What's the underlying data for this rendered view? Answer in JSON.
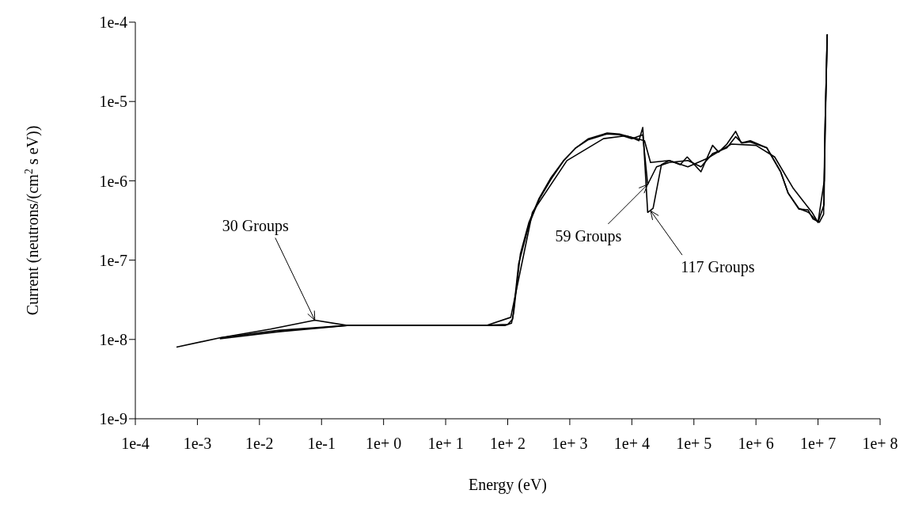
{
  "chart_data": {
    "type": "line",
    "xlabel": "Energy (eV)",
    "ylabel": "Current (neutrons/(cm$^{2}$ s eV))",
    "log": "xy",
    "xlim": [
      0.0001,
      100000000
    ],
    "xticks": [
      {
        "value": 0.0001,
        "label": "1e-4"
      },
      {
        "value": 0.001,
        "label": "1e-3"
      },
      {
        "value": 0.01,
        "label": "1e-2"
      },
      {
        "value": 0.1,
        "label": "1e-1"
      },
      {
        "value": 1,
        "label": "1e+ 0"
      },
      {
        "value": 10,
        "label": "1e+ 1"
      },
      {
        "value": 100,
        "label": "1e+ 2"
      },
      {
        "value": 1000,
        "label": "1e+ 3"
      },
      {
        "value": 10000,
        "label": "1e+ 4"
      },
      {
        "value": 100000,
        "label": "1e+ 5"
      },
      {
        "value": 1000000,
        "label": "1e+ 6"
      },
      {
        "value": 10000000,
        "label": "1e+ 7"
      },
      {
        "value": 100000000,
        "label": "1e+ 8"
      }
    ],
    "ylim": [
      1e-09,
      0.0001
    ],
    "yticks": [
      {
        "value": 1e-09,
        "label": "1e-9"
      },
      {
        "value": 1e-08,
        "label": "1e-8"
      },
      {
        "value": 1e-07,
        "label": "1e-7"
      },
      {
        "value": 1e-06,
        "label": "1e-6"
      },
      {
        "value": 1e-05,
        "label": "1e-5"
      },
      {
        "value": 0.0001,
        "label": "1e-4"
      }
    ],
    "series": [
      {
        "color": "#000000",
        "x": [
          0.0023,
          0.015,
          0.078,
          0.26,
          45,
          112,
          250,
          900,
          3500,
          8000,
          16000,
          20000,
          40000,
          80000,
          160000,
          400000,
          1000000,
          2000000,
          4000000,
          8000000,
          10000000,
          12600000,
          14000000
        ],
        "values": [
          1.05e-08,
          1.35e-08,
          1.75e-08,
          1.5e-08,
          1.5e-08,
          1.9e-08,
          4e-07,
          1.8e-06,
          3.4e-06,
          3.7e-06,
          3.2e-06,
          1.7e-06,
          1.8e-06,
          1.5e-06,
          1.9e-06,
          2.9e-06,
          2.8e-06,
          2e-06,
          8e-07,
          4e-07,
          3e-07,
          1e-06,
          7e-05
        ]
      },
      {
        "color": "#000000",
        "x": [
          0.0023,
          0.02,
          0.26,
          40,
          100,
          120,
          150,
          220,
          320,
          500,
          800,
          1250,
          2000,
          4000,
          6300,
          10000,
          15000,
          18000,
          25000,
          40000,
          80000,
          130000,
          200000,
          340000,
          470000,
          600000,
          800000,
          1500000,
          2500000,
          3300000,
          4900000,
          7000000,
          10000000,
          12500000,
          13000000,
          14100000
        ],
        "values": [
          1.02e-08,
          1.25e-08,
          1.5e-08,
          1.5e-08,
          1.55e-08,
          1.8e-08,
          9e-08,
          2.8e-07,
          5.8e-07,
          1.05e-06,
          1.8e-06,
          2.6e-06,
          3.3e-06,
          3.9e-06,
          3.8e-06,
          3.4e-06,
          3.8e-06,
          9e-07,
          1.5e-06,
          1.7e-06,
          1.8e-06,
          1.5e-06,
          2.2e-06,
          2.6e-06,
          3.6e-06,
          3e-06,
          3.1e-06,
          2.6e-06,
          1.3e-06,
          7e-07,
          4.5e-07,
          4e-07,
          3e-07,
          5e-07,
          5e-06,
          7e-05
        ]
      },
      {
        "color": "#000000",
        "x": [
          0.00046,
          0.0023,
          0.02,
          0.26,
          40,
          90,
          115,
          125,
          160,
          220,
          320,
          500,
          800,
          1250,
          2000,
          4000,
          6300,
          10000,
          13000,
          15000,
          18000,
          22000,
          30000,
          40000,
          60000,
          78000,
          130000,
          200000,
          250000,
          340000,
          470000,
          580000,
          810000,
          1500000,
          2500000,
          3300000,
          4900000,
          6900000,
          8300000,
          10500000,
          12300000,
          12900000,
          14100000
        ],
        "values": [
          8e-09,
          1.05e-08,
          1.3e-08,
          1.5e-08,
          1.5e-08,
          1.5e-08,
          1.6e-08,
          2.2e-08,
          1.2e-07,
          3e-07,
          6e-07,
          1.1e-06,
          1.8e-06,
          2.6e-06,
          3.4e-06,
          4e-06,
          3.9e-06,
          3.5e-06,
          3.2e-06,
          4.7e-06,
          4e-07,
          4.5e-07,
          1.6e-06,
          1.8e-06,
          1.6e-06,
          2e-06,
          1.3e-06,
          2.8e-06,
          2.3e-06,
          2.9e-06,
          4.2e-06,
          3e-06,
          3.2e-06,
          2.6e-06,
          1.3e-06,
          7e-07,
          4.4e-07,
          4.3e-07,
          3.3e-07,
          3e-07,
          3.8e-07,
          4e-06,
          7e-05
        ]
      }
    ],
    "annotations": [
      {
        "text": "30 Groups",
        "x": 0.078,
        "y": 1.75e-08
      },
      {
        "text": "59 Groups",
        "x": 18000,
        "y": 9e-07
      },
      {
        "text": "117 Groups",
        "x": 20000,
        "y": 4.2e-07
      }
    ]
  }
}
